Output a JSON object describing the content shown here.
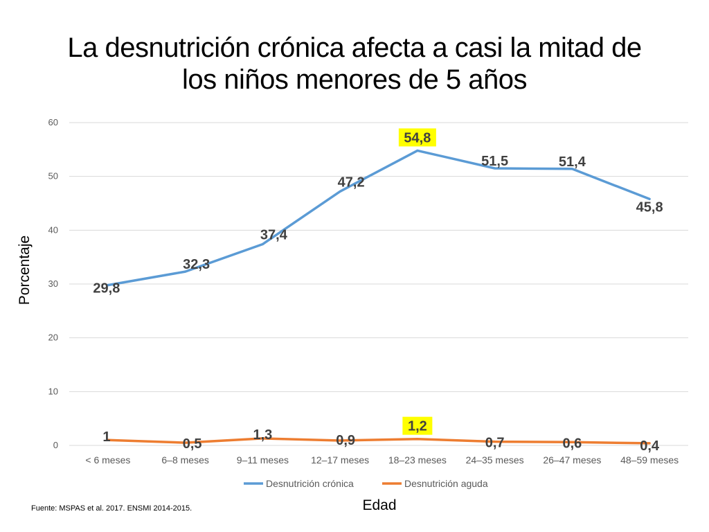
{
  "slide": {
    "title_line1": "La desnutrición crónica afecta a casi la mitad  de",
    "title_line2": "los niños menores de 5 años",
    "source": "Fuente: MSPAS et al. 2017. ENSMI 2014-2015."
  },
  "chart_data": {
    "type": "line",
    "xlabel": "Edad",
    "ylabel": "Porcentaje",
    "ylim": [
      0,
      60
    ],
    "yticks": [
      0,
      10,
      20,
      30,
      40,
      50,
      60
    ],
    "grid": true,
    "legend": "bottom",
    "categories": [
      "< 6 meses",
      "6–8 meses",
      "9–11 meses",
      "12–17 meses",
      "18–23 meses",
      "24–35 meses",
      "26–47 meses",
      "48–59 meses"
    ],
    "series": [
      {
        "name": "Desnutrición crónica",
        "color": "#5b9bd5",
        "values": [
          29.8,
          32.3,
          37.4,
          47.2,
          54.8,
          51.5,
          51.4,
          45.8
        ],
        "labels": [
          "29,8",
          "32,3",
          "37,4",
          "47,2",
          "54,8",
          "51,5",
          "51,4",
          "45,8"
        ],
        "highlight_index": 4
      },
      {
        "name": "Desnutrición aguda",
        "color": "#ed7d31",
        "values": [
          1,
          0.5,
          1.3,
          0.9,
          1.2,
          0.7,
          0.6,
          0.4
        ],
        "labels": [
          "1",
          "0,5",
          "1,3",
          "0,9",
          "1,2",
          "0,7",
          "0,6",
          "0,4"
        ],
        "highlight_index": 4
      }
    ],
    "highlight_color": "#ffff00",
    "grid_color": "#d9d9d9",
    "tick_color": "#595959",
    "label_color": "#404040"
  }
}
